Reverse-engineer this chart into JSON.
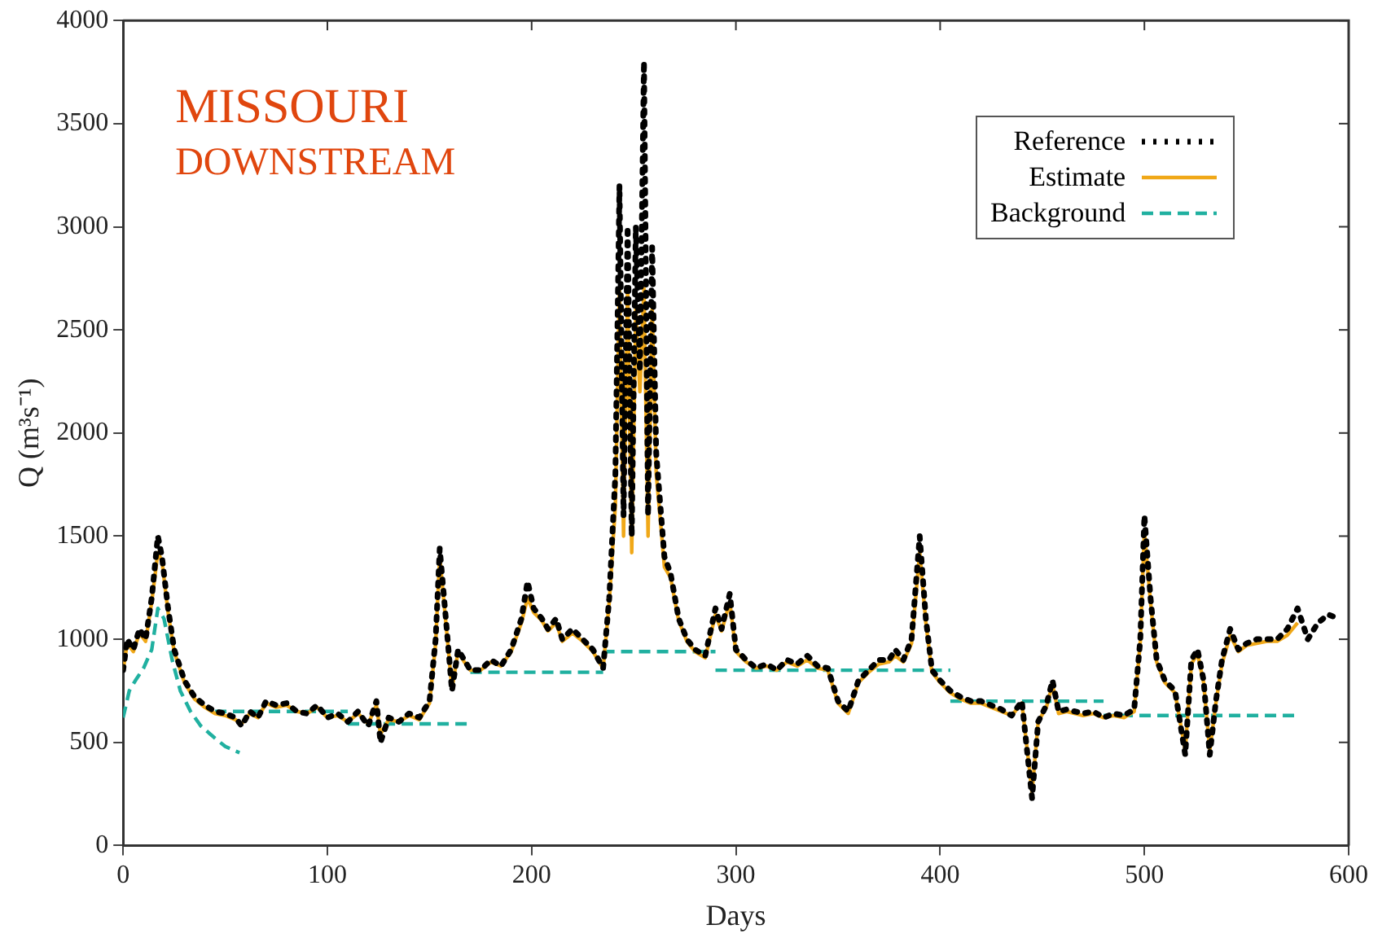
{
  "chart_data": {
    "type": "line",
    "xlabel": "Days",
    "ylabel": "Q (m³s⁻¹)",
    "annotations": [
      "MISSOURI",
      "DOWNSTREAM"
    ],
    "xlim": [
      0,
      600
    ],
    "xticks": [
      0,
      100,
      200,
      300,
      400,
      500,
      600
    ],
    "ylim": [
      0,
      4000
    ],
    "yticks": [
      0,
      500,
      1000,
      1500,
      2000,
      2500,
      3000,
      3500,
      4000
    ],
    "grid": false,
    "legend": "top right",
    "marker": "none",
    "series": [
      {
        "name": "Reference",
        "color": "#000000",
        "line_style": "dotted",
        "x": [
          0,
          2,
          5,
          8,
          11,
          14,
          17,
          19,
          22,
          25,
          30,
          35,
          40,
          45,
          50,
          55,
          58,
          62,
          66,
          70,
          75,
          80,
          85,
          90,
          95,
          100,
          105,
          110,
          115,
          120,
          124,
          126,
          130,
          135,
          140,
          145,
          150,
          153,
          155,
          158,
          161,
          164,
          167,
          170,
          175,
          180,
          185,
          190,
          195,
          198,
          201,
          205,
          208,
          212,
          215,
          220,
          225,
          230,
          235,
          238,
          241,
          243,
          245,
          247,
          249,
          251,
          253,
          255,
          257,
          259,
          261,
          263,
          265,
          268,
          272,
          276,
          280,
          285,
          290,
          293,
          297,
          300,
          305,
          310,
          315,
          320,
          325,
          330,
          335,
          340,
          345,
          350,
          355,
          360,
          365,
          370,
          375,
          378,
          382,
          386,
          390,
          393,
          396,
          400,
          405,
          410,
          415,
          420,
          425,
          430,
          435,
          440,
          445,
          448,
          452,
          455,
          458,
          462,
          470,
          475,
          480,
          485,
          490,
          495,
          498,
          500,
          503,
          506,
          510,
          515,
          520,
          523,
          526,
          529,
          532,
          535,
          538,
          542,
          546,
          550,
          555,
          560,
          565,
          570,
          575,
          580,
          585,
          590,
          595
        ],
        "values": [
          850,
          1000,
          950,
          1050,
          1000,
          1200,
          1500,
          1400,
          1150,
          950,
          800,
          720,
          680,
          650,
          640,
          620,
          580,
          650,
          620,
          700,
          680,
          690,
          650,
          640,
          680,
          620,
          640,
          600,
          650,
          580,
          700,
          500,
          620,
          600,
          640,
          620,
          700,
          1000,
          1440,
          1100,
          750,
          950,
          900,
          850,
          850,
          900,
          870,
          950,
          1100,
          1280,
          1150,
          1100,
          1050,
          1100,
          1000,
          1050,
          1000,
          950,
          860,
          1200,
          1800,
          3200,
          1600,
          3000,
          1500,
          3000,
          2300,
          3800,
          1600,
          2900,
          1900,
          1650,
          1400,
          1320,
          1100,
          1000,
          950,
          920,
          1150,
          1050,
          1220,
          950,
          900,
          860,
          880,
          850,
          900,
          880,
          920,
          870,
          860,
          700,
          650,
          800,
          850,
          900,
          900,
          950,
          900,
          1000,
          1500,
          1100,
          850,
          800,
          750,
          720,
          700,
          700,
          680,
          660,
          630,
          700,
          230,
          600,
          680,
          800,
          650,
          660,
          640,
          650,
          620,
          640,
          630,
          660,
          1000,
          1600,
          1200,
          900,
          800,
          750,
          440,
          900,
          950,
          800,
          440,
          700,
          900,
          1050,
          950,
          980,
          1000,
          1000,
          1000,
          1050,
          1150,
          1000,
          1080,
          1120,
          1100
        ]
      },
      {
        "name": "Estimate",
        "color": "#f0a818",
        "line_style": "solid",
        "x": [
          0,
          2,
          5,
          8,
          11,
          14,
          17,
          19,
          22,
          25,
          30,
          35,
          40,
          45,
          50,
          55,
          58,
          62,
          66,
          70,
          75,
          80,
          85,
          90,
          95,
          100,
          105,
          110,
          115,
          120,
          124,
          126,
          130,
          135,
          140,
          145,
          150,
          153,
          155,
          158,
          161,
          164,
          167,
          170,
          175,
          180,
          185,
          190,
          195,
          198,
          201,
          205,
          208,
          212,
          215,
          220,
          225,
          230,
          235,
          238,
          241,
          243,
          245,
          247,
          249,
          251,
          253,
          255,
          257,
          259,
          261,
          263,
          265,
          268,
          272,
          276,
          280,
          285,
          290,
          293,
          297,
          300,
          305,
          310,
          315,
          320,
          325,
          330,
          335,
          340,
          345,
          350,
          355,
          360,
          365,
          370,
          375,
          378,
          382,
          386,
          390,
          393,
          396,
          400,
          405,
          410,
          415,
          420,
          425,
          430,
          435,
          440,
          445,
          448,
          452,
          455,
          458,
          462,
          470,
          475,
          480,
          485,
          490,
          495,
          498,
          500,
          503,
          506,
          510,
          515,
          520,
          523,
          526,
          529,
          532,
          535,
          538,
          542,
          546,
          550,
          555,
          560,
          565,
          570,
          575
        ],
        "values": [
          850,
          980,
          940,
          1030,
          990,
          1180,
          1420,
          1380,
          1130,
          940,
          790,
          710,
          670,
          640,
          630,
          610,
          590,
          640,
          620,
          690,
          670,
          680,
          650,
          640,
          670,
          620,
          630,
          600,
          640,
          590,
          680,
          540,
          610,
          600,
          630,
          610,
          690,
          980,
          1400,
          1080,
          760,
          940,
          890,
          850,
          850,
          890,
          870,
          940,
          1080,
          1200,
          1130,
          1090,
          1040,
          1080,
          990,
          1030,
          990,
          940,
          860,
          1180,
          1650,
          2700,
          1500,
          2700,
          1420,
          2600,
          2200,
          2700,
          1500,
          2600,
          1800,
          1580,
          1350,
          1300,
          1090,
          990,
          940,
          910,
          1120,
          1040,
          1180,
          940,
          890,
          860,
          870,
          850,
          890,
          870,
          900,
          860,
          850,
          690,
          640,
          790,
          840,
          880,
          890,
          920,
          890,
          980,
          1420,
          1080,
          840,
          790,
          740,
          710,
          690,
          690,
          670,
          650,
          630,
          690,
          260,
          600,
          670,
          780,
          640,
          650,
          630,
          640,
          620,
          630,
          620,
          650,
          990,
          1520,
          1180,
          890,
          790,
          740,
          460,
          880,
          930,
          790,
          460,
          690,
          880,
          1020,
          940,
          970,
          980,
          990,
          990,
          1020,
          1080
        ]
      },
      {
        "name": "Background",
        "color": "#20b0a0",
        "line_style": "dashed",
        "x": [
          0,
          3,
          6,
          10,
          14,
          17,
          20,
          24,
          28,
          33,
          38,
          45,
          50,
          57
        ],
        "values": [
          620,
          750,
          800,
          860,
          950,
          1150,
          1100,
          900,
          750,
          650,
          580,
          520,
          480,
          450
        ]
      },
      {
        "color": "#20b0a0",
        "line_style": "dashed",
        "x": [
          45,
          110
        ],
        "values": [
          650,
          650
        ]
      },
      {
        "color": "#20b0a0",
        "line_style": "dashed",
        "x": [
          110,
          170
        ],
        "values": [
          590,
          590
        ]
      },
      {
        "color": "#20b0a0",
        "line_style": "dashed",
        "x": [
          170,
          235
        ],
        "values": [
          840,
          840
        ]
      },
      {
        "color": "#20b0a0",
        "line_style": "dashed",
        "x": [
          235,
          290
        ],
        "values": [
          940,
          940
        ]
      },
      {
        "color": "#20b0a0",
        "line_style": "dashed",
        "x": [
          290,
          405
        ],
        "values": [
          850,
          850
        ]
      },
      {
        "color": "#20b0a0",
        "line_style": "dashed",
        "x": [
          405,
          480
        ],
        "values": [
          700,
          700
        ]
      },
      {
        "color": "#20b0a0",
        "line_style": "dashed",
        "x": [
          480,
          575
        ],
        "values": [
          630,
          630
        ]
      }
    ]
  }
}
